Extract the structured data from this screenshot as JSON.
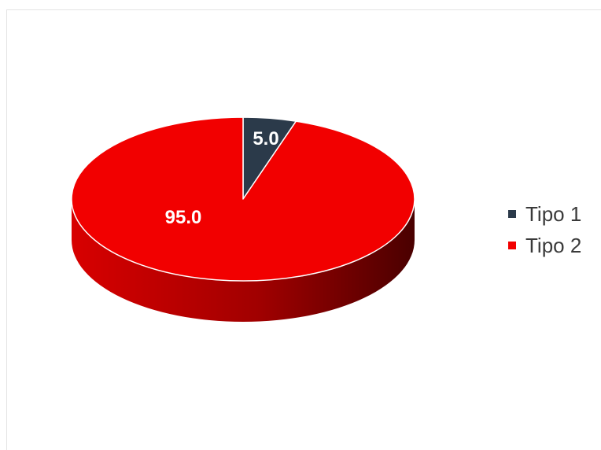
{
  "chart_data": {
    "type": "pie",
    "three_d": true,
    "categories": [
      "Tipo 1",
      "Tipo 2"
    ],
    "values": [
      5.0,
      95.0
    ],
    "data_labels": [
      "5.0",
      "95.0"
    ],
    "colors": [
      "#2b3a4a",
      "#f20000"
    ],
    "legend_position": "right"
  }
}
